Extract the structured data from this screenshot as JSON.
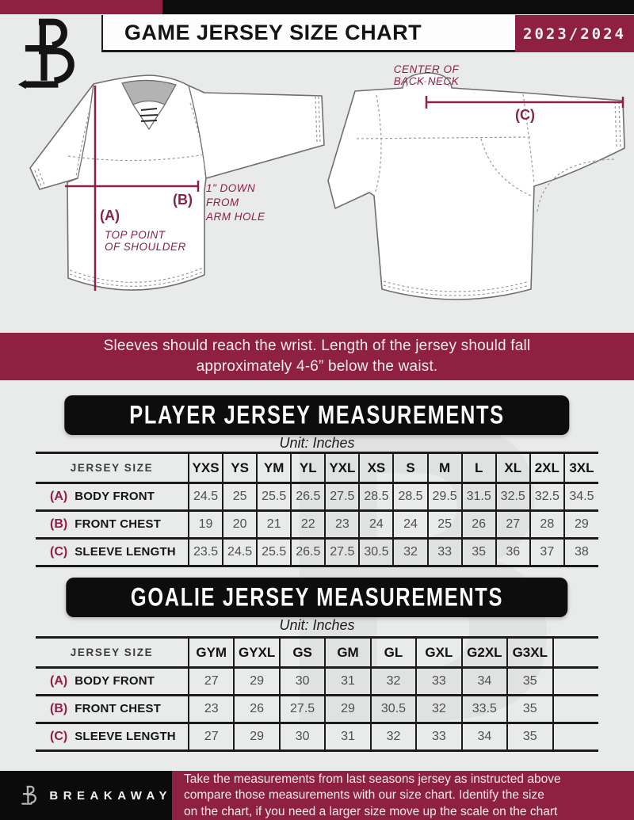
{
  "colors": {
    "maroon": "#8e2142",
    "black": "#0d0d0d",
    "page_bg": "#e9eaea"
  },
  "header": {
    "title": "GAME JERSEY SIZE CHART",
    "season": "2023/2024",
    "logo_letter": "B"
  },
  "watermark": "B",
  "diagram": {
    "front": {
      "a_key": "(A)",
      "a_line1": "TOP POINT",
      "a_line2": "OF SHOULDER",
      "b_key": "(B)",
      "b_line1": "1\" DOWN",
      "b_line2": "FROM",
      "b_line3": "ARM HOLE"
    },
    "back": {
      "c_key": "(C)",
      "c_line1": "CENTER OF",
      "c_line2": "BACK NECK"
    }
  },
  "banner": {
    "line1": "Sleeves should reach the wrist. Length of the jersey should fall",
    "line2": "approximately 4-6” below the waist."
  },
  "player": {
    "title": "PLAYER JERSEY MEASUREMENTS",
    "unit": "Unit: Inches",
    "corner": "JERSEY SIZE",
    "sizes": [
      "YXS",
      "YS",
      "YM",
      "YL",
      "YXL",
      "XS",
      "S",
      "M",
      "L",
      "XL",
      "2XL",
      "3XL"
    ],
    "rows": [
      {
        "key": "(A)",
        "label": "BODY FRONT",
        "values": [
          "24.5",
          "25",
          "25.5",
          "26.5",
          "27.5",
          "28.5",
          "28.5",
          "29.5",
          "31.5",
          "32.5",
          "32.5",
          "34.5"
        ]
      },
      {
        "key": "(B)",
        "label": "FRONT CHEST",
        "values": [
          "19",
          "20",
          "21",
          "22",
          "23",
          "24",
          "24",
          "25",
          "26",
          "27",
          "28",
          "29"
        ]
      },
      {
        "key": "(C)",
        "label": "SLEEVE LENGTH",
        "values": [
          "23.5",
          "24.5",
          "25.5",
          "26.5",
          "27.5",
          "30.5",
          "32",
          "33",
          "35",
          "36",
          "37",
          "38"
        ]
      }
    ]
  },
  "goalie": {
    "title": "GOALIE JERSEY MEASUREMENTS",
    "unit": "Unit: Inches",
    "corner": "JERSEY SIZE",
    "sizes": [
      "GYM",
      "GYXL",
      "GS",
      "GM",
      "GL",
      "GXL",
      "G2XL",
      "G3XL",
      ""
    ],
    "rows": [
      {
        "key": "(A)",
        "label": "BODY FRONT",
        "values": [
          "27",
          "29",
          "30",
          "31",
          "32",
          "33",
          "34",
          "35",
          ""
        ]
      },
      {
        "key": "(B)",
        "label": "FRONT CHEST",
        "values": [
          "23",
          "26",
          "27.5",
          "29",
          "30.5",
          "32",
          "33.5",
          "35",
          ""
        ]
      },
      {
        "key": "(C)",
        "label": "SLEEVE LENGTH",
        "values": [
          "27",
          "29",
          "30",
          "31",
          "32",
          "33",
          "34",
          "35",
          ""
        ]
      }
    ]
  },
  "footer": {
    "brand": "BREAKAWAY",
    "line1": "Take the measurements from last seasons jersey as instructed above",
    "line2": "compare those measurements  with our size chart. Identify the size",
    "line3": "on the chart, if you need a larger size move up the scale on the chart"
  }
}
